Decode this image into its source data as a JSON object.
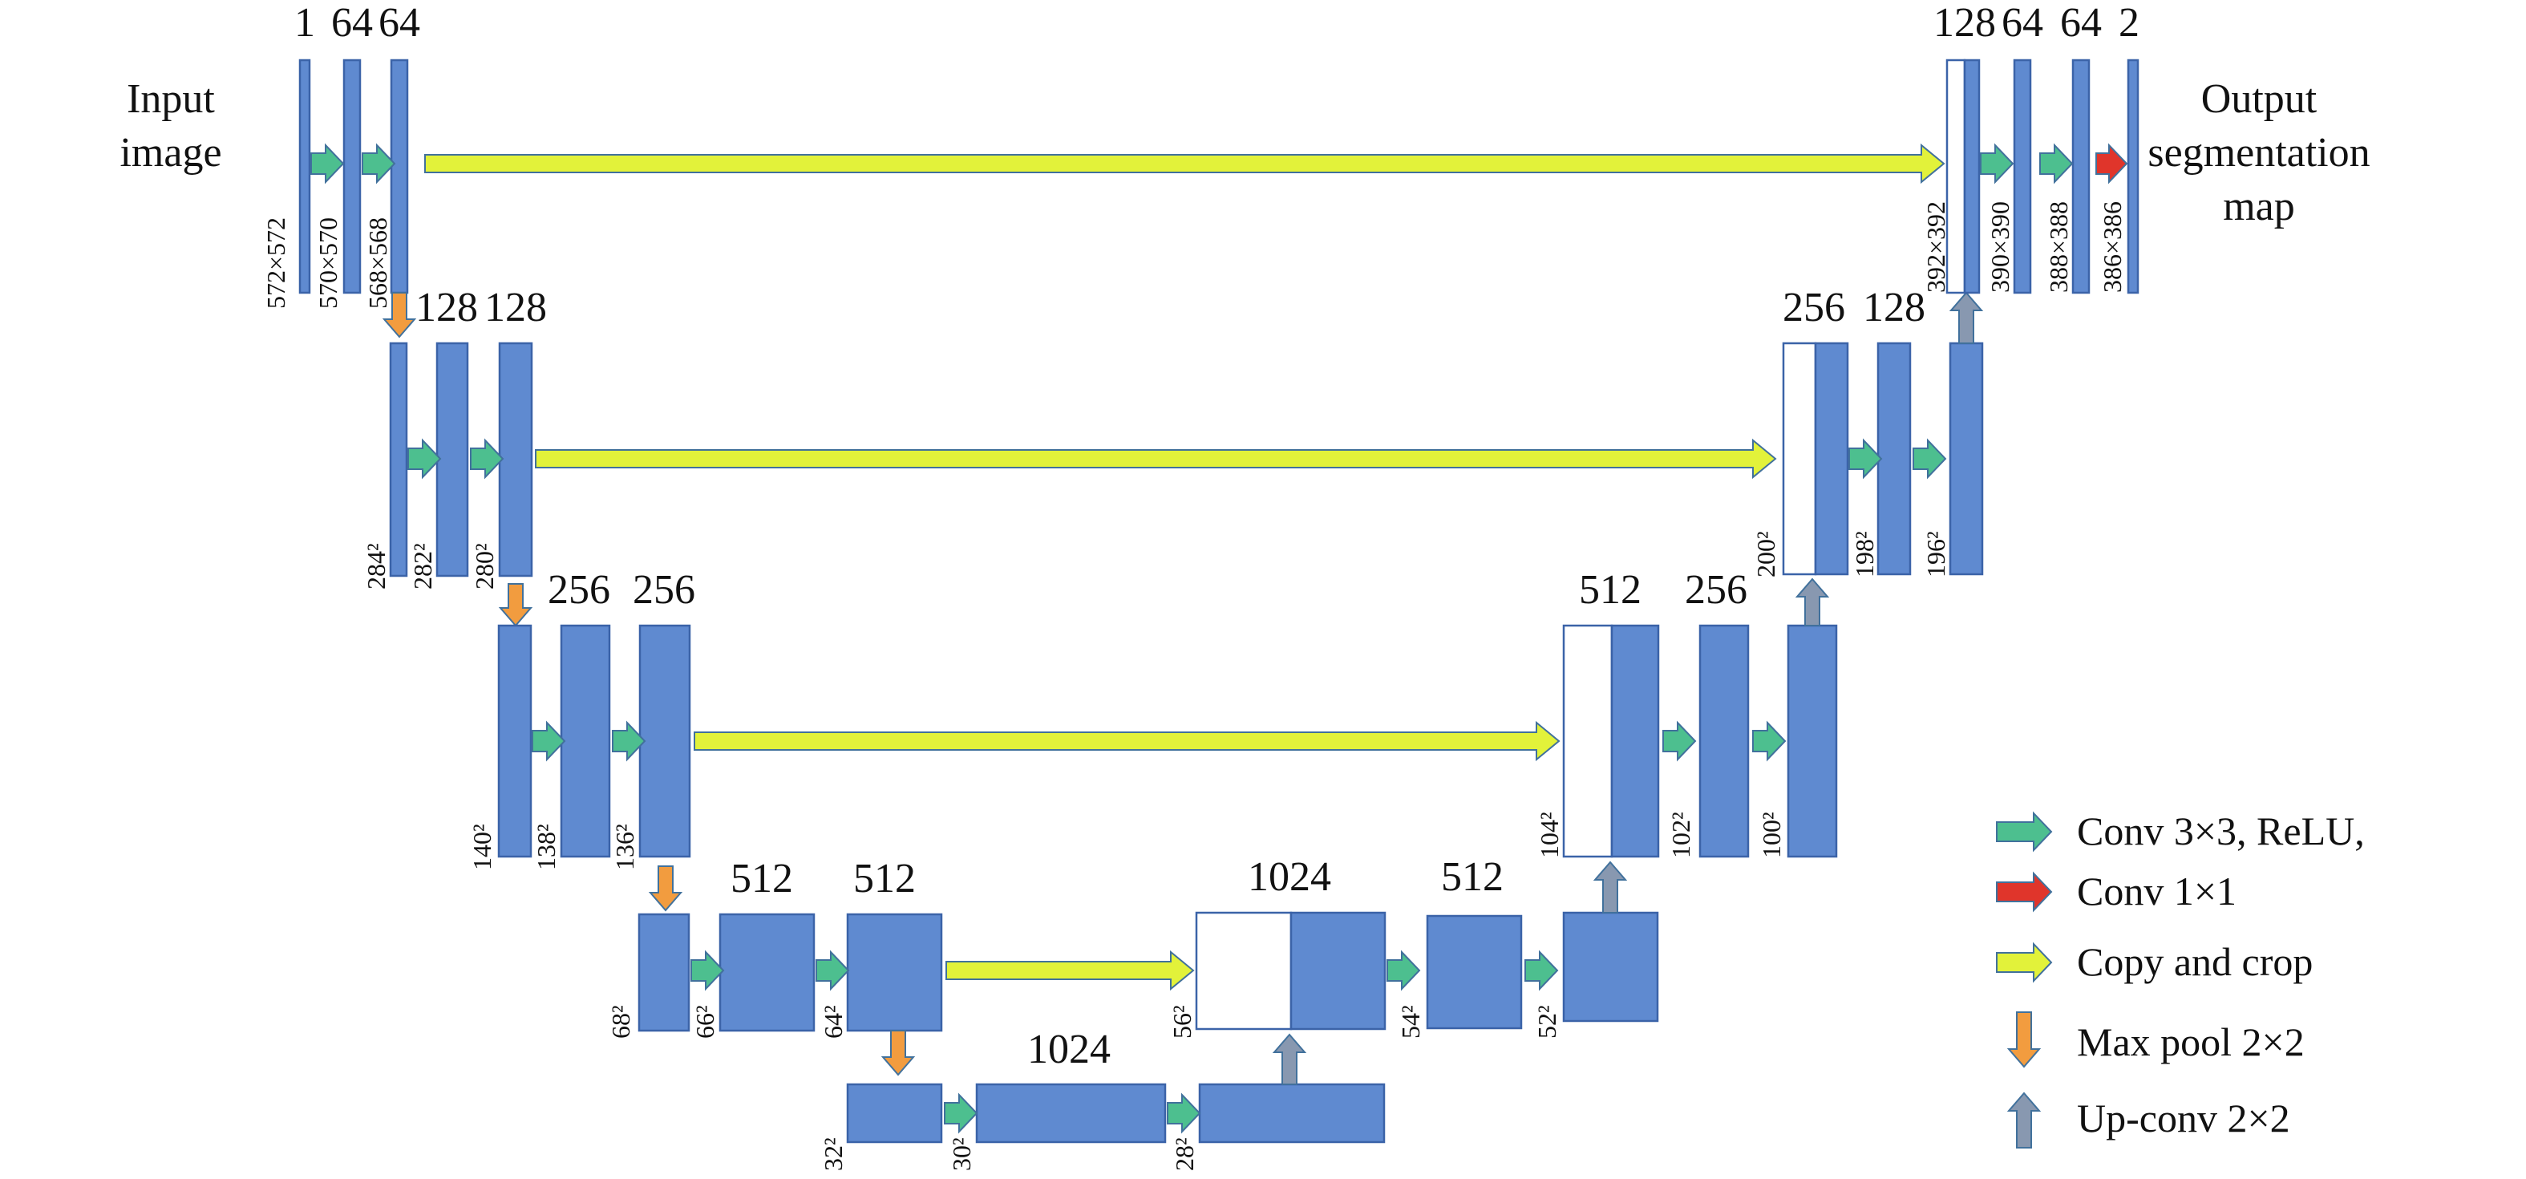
{
  "input_label": [
    "Input",
    "image"
  ],
  "output_label": [
    "Output",
    "segmentation",
    "map"
  ],
  "channel_labels": [
    "1",
    "64",
    "64",
    "128",
    "128",
    "256",
    "256",
    "512",
    "512",
    "1024",
    "1024",
    "512",
    "512",
    "256",
    "256",
    "128",
    "128",
    "64",
    "64",
    "2"
  ],
  "level1_dims": [
    "572×572",
    "570×570",
    "568×568"
  ],
  "level2_dims": [
    "284²",
    "282²",
    "280²"
  ],
  "level3_dims": [
    "140²",
    "138²",
    "136²"
  ],
  "level4_dims": [
    "68²",
    "66²",
    "64²"
  ],
  "bottom_dims": [
    "32²",
    "30²",
    "28²"
  ],
  "up4_dims": [
    "56²",
    "54²",
    "52²"
  ],
  "up3_dims": [
    "104²",
    "102²",
    "100²"
  ],
  "up2_dims": [
    "200²",
    "198²",
    "196²"
  ],
  "up1_dims": [
    "392×392",
    "390×390",
    "388×388",
    "386×386"
  ],
  "legend": [
    {
      "label": "Conv 3×3, ReLU,",
      "icon": "green-right-arrow",
      "color": "#4dbf8f"
    },
    {
      "label": "Conv 1×1",
      "icon": "red-right-arrow",
      "color": "#e0352b"
    },
    {
      "label": "Copy and crop",
      "icon": "yellow-right-arrow",
      "color": "#e2f23a"
    },
    {
      "label": "Max pool 2×2",
      "icon": "orange-down-arrow",
      "color": "#f29c3f"
    },
    {
      "label": "Up-conv 2×2",
      "icon": "gray-up-arrow",
      "color": "#8898b0"
    }
  ],
  "colors": {
    "block_fill": "#5f8ad0",
    "block_stroke": "#3b63a8",
    "conv": "#4dbf8f",
    "conv1x1": "#e0352b",
    "copy": "#e2f23a",
    "pool": "#f29c3f",
    "upconv": "#8898b0"
  }
}
